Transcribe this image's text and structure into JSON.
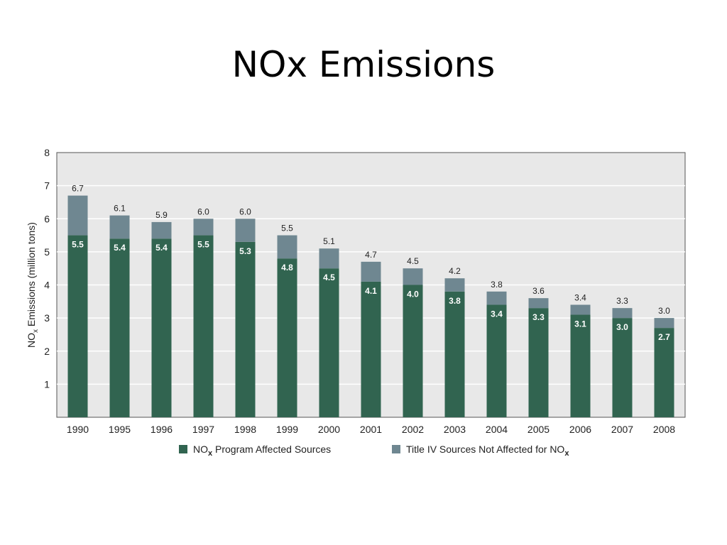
{
  "slide": {
    "title": "NOx Emissions"
  },
  "chart_data": {
    "type": "bar",
    "stacked": true,
    "title": "NOx Emissions",
    "ylabel_main": "NO",
    "ylabel_sub": "x",
    "ylabel_rest": " Emissions (million tons)",
    "ylim": [
      0,
      8
    ],
    "yticks": [
      1,
      2,
      3,
      4,
      5,
      6,
      7,
      8
    ],
    "grid": true,
    "legend_position": "bottom",
    "categories": [
      "1990",
      "1995",
      "1996",
      "1997",
      "1998",
      "1999",
      "2000",
      "2001",
      "2002",
      "2003",
      "2004",
      "2005",
      "2006",
      "2007",
      "2008"
    ],
    "totals": [
      6.7,
      6.1,
      5.9,
      6.0,
      6.0,
      5.5,
      5.1,
      4.7,
      4.5,
      4.2,
      3.8,
      3.6,
      3.4,
      3.3,
      3.0
    ],
    "series": [
      {
        "name_main": "NO",
        "name_sub": "x",
        "name_rest": " Program Affected Sources",
        "color": "#316450",
        "values": [
          5.5,
          5.4,
          5.4,
          5.5,
          5.3,
          4.8,
          4.5,
          4.1,
          4.0,
          3.8,
          3.4,
          3.3,
          3.1,
          3.0,
          2.7
        ]
      },
      {
        "name_main": "Title IV Sources Not Affected for NO",
        "name_sub": "x",
        "name_rest": "",
        "color": "#6f8791",
        "values": [
          1.2,
          0.7,
          0.5,
          0.5,
          0.7,
          0.7,
          0.6,
          0.6,
          0.5,
          0.4,
          0.4,
          0.3,
          0.3,
          0.3,
          0.3
        ]
      }
    ],
    "colors": {
      "plot_background": "#e8e8e8",
      "grid": "#ffffff",
      "axis": "#555555"
    }
  }
}
